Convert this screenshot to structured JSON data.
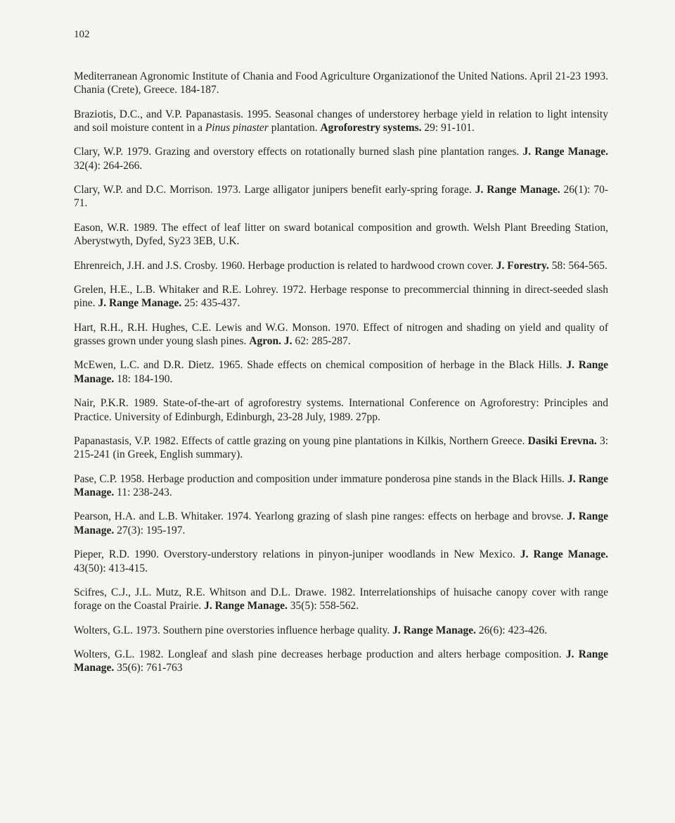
{
  "pageNumber": "102",
  "references": [
    {
      "parts": [
        {
          "t": "Mediterranean Agronomic Institute of Chania and Food Agriculture Organizationof the United Nations. April 21-23 1993. Chania (Crete), Greece. 184-187."
        }
      ]
    },
    {
      "parts": [
        {
          "t": "Braziotis, D.C., and V.P. Papanastasis. 1995. Seasonal changes of understorey herbage yield in relation to light intensity and soil moisture content in a "
        },
        {
          "t": "Pinus pinaster",
          "italic": true
        },
        {
          "t": " plantation. "
        },
        {
          "t": "Agroforestry systems.",
          "bold": true
        },
        {
          "t": " 29: 91-101."
        }
      ]
    },
    {
      "parts": [
        {
          "t": "Clary, W.P. 1979. Grazing and overstory effects on rotationally burned slash pine plantation ranges. "
        },
        {
          "t": "J. Range Manage.",
          "bold": true
        },
        {
          "t": " 32(4): 264-266."
        }
      ]
    },
    {
      "parts": [
        {
          "t": "Clary, W.P. and D.C. Morrison. 1973. Large alligator junipers benefit early-spring forage. "
        },
        {
          "t": "J. Range Manage.",
          "bold": true
        },
        {
          "t": " 26(1): 70-71."
        }
      ]
    },
    {
      "parts": [
        {
          "t": "Eason, W.R. 1989. The effect of leaf litter on sward botanical composition and growth. Welsh Plant Breeding Station, Aberystwyth, Dyfed, Sy23 3EB, U.K."
        }
      ]
    },
    {
      "parts": [
        {
          "t": "Ehrenreich, J.H. and J.S. Crosby. 1960. Herbage production is related to hardwood crown cover. "
        },
        {
          "t": "J. Forestry.",
          "bold": true
        },
        {
          "t": " 58: 564-565."
        }
      ]
    },
    {
      "parts": [
        {
          "t": "Grelen, H.E., L.B. Whitaker and R.E. Lohrey. 1972. Herbage response to precommercial thinning in direct-seeded slash pine. "
        },
        {
          "t": "J. Range Manage.",
          "bold": true
        },
        {
          "t": " 25: 435-437."
        }
      ]
    },
    {
      "parts": [
        {
          "t": "Hart, R.H., R.H. Hughes, C.E. Lewis and W.G. Monson. 1970. Effect of nitrogen and shading on yield and quality of grasses grown under young slash pines. "
        },
        {
          "t": "Agron. J.",
          "bold": true
        },
        {
          "t": " 62: 285-287."
        }
      ]
    },
    {
      "parts": [
        {
          "t": "McEwen, L.C. and D.R. Dietz. 1965. Shade effects on chemical composition of herbage in the Black Hills. "
        },
        {
          "t": "J. Range Manage.",
          "bold": true
        },
        {
          "t": " 18: 184-190."
        }
      ]
    },
    {
      "parts": [
        {
          "t": "Nair, P.K.R. 1989. State-of-the-art of agroforestry systems. International Conference on Agroforestry: Principles and Practice. University of Edinburgh, Edinburgh, 23-28 July, 1989. 27pp."
        }
      ]
    },
    {
      "parts": [
        {
          "t": "Papanastasis, V.P. 1982. Effects of cattle grazing on young pine plantations in Kilkis, Northern Greece. "
        },
        {
          "t": "Dasiki Erevna.",
          "bold": true
        },
        {
          "t": " 3: 215-241 (in Greek, English summary)."
        }
      ]
    },
    {
      "parts": [
        {
          "t": "Pase, C.P. 1958. Herbage production and composition under immature ponderosa pine stands in the Black Hills. "
        },
        {
          "t": "J. Range Manage.",
          "bold": true
        },
        {
          "t": " 11: 238-243."
        }
      ]
    },
    {
      "parts": [
        {
          "t": "Pearson, H.A. and L.B. Whitaker. 1974. Yearlong grazing of slash pine ranges: effects on herbage and brovse. "
        },
        {
          "t": "J. Range Manage.",
          "bold": true
        },
        {
          "t": " 27(3): 195-197."
        }
      ]
    },
    {
      "parts": [
        {
          "t": "Pieper, R.D. 1990. Overstory-understory relations in pinyon-juniper woodlands in New Mexico. "
        },
        {
          "t": "J. Range Manage.",
          "bold": true
        },
        {
          "t": " 43(50): 413-415."
        }
      ]
    },
    {
      "parts": [
        {
          "t": "Scifres, C.J., J.L. Mutz, R.E. Whitson and D.L. Drawe. 1982. Interrelationships of huisache canopy cover with range forage on the Coastal Prairie. "
        },
        {
          "t": "J. Range Manage.",
          "bold": true
        },
        {
          "t": " 35(5): 558-562."
        }
      ]
    },
    {
      "parts": [
        {
          "t": "Wolters, G.L. 1973. Southern pine overstories influence herbage quality. "
        },
        {
          "t": "J. Range Manage.",
          "bold": true
        },
        {
          "t": " 26(6): 423-426."
        }
      ]
    },
    {
      "parts": [
        {
          "t": "Wolters, G.L. 1982. Longleaf and slash pine decreases herbage production and alters herbage composition. "
        },
        {
          "t": "J. Range Manage.",
          "bold": true
        },
        {
          "t": " 35(6): 761-763"
        }
      ]
    }
  ]
}
